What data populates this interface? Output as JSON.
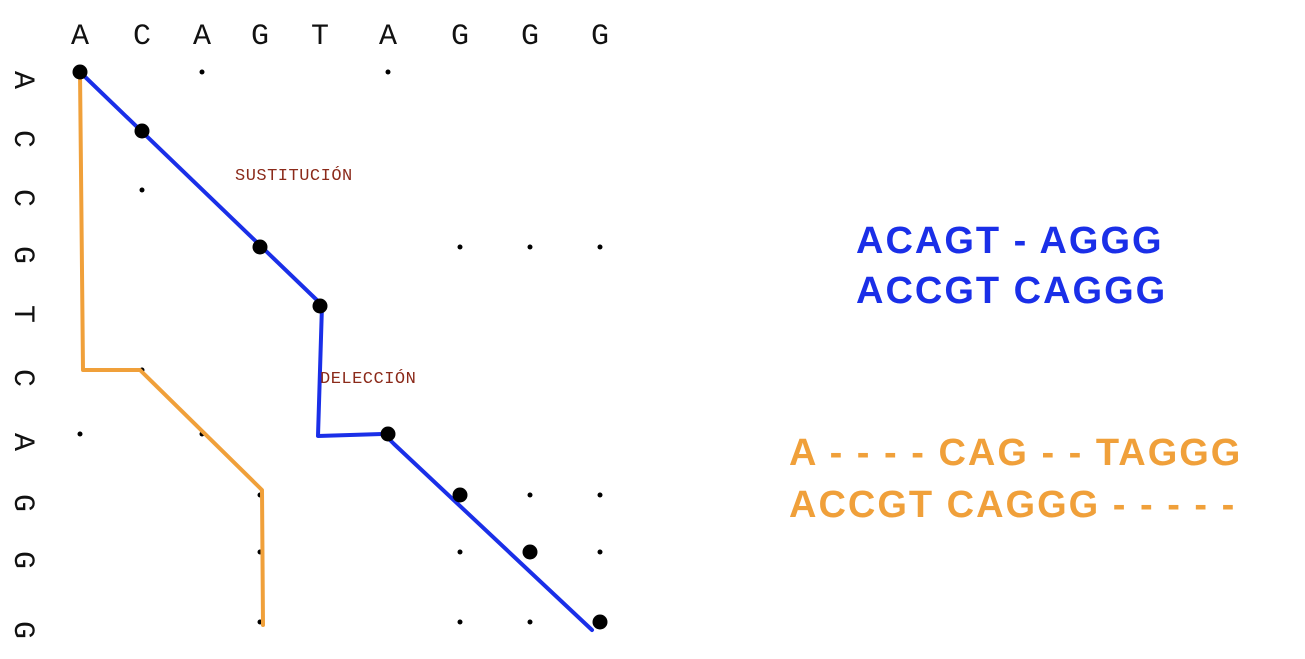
{
  "colors": {
    "blue_path": "#1a2fe8",
    "orange_path": "#f0a03a",
    "annotation": "#8b2a1a",
    "dots": "#000000"
  },
  "sequences": {
    "top": [
      "A",
      "C",
      "A",
      "G",
      "T",
      "A",
      "G",
      "G",
      "G"
    ],
    "left": [
      "A",
      "C",
      "C",
      "G",
      "T",
      "C",
      "A",
      "G",
      "G",
      "G"
    ]
  },
  "annotations": {
    "substitution": "SUSTITUCIÓN",
    "deletion": "DELECCIÓN"
  },
  "alignments": {
    "blue": {
      "line1": "ACAGT - AGGG",
      "line2": "ACCGT CAGGG"
    },
    "orange": {
      "line1": "A - - - - CAG - - TAGGG",
      "line2": "ACCGT CAGGG - - - - -"
    }
  }
}
